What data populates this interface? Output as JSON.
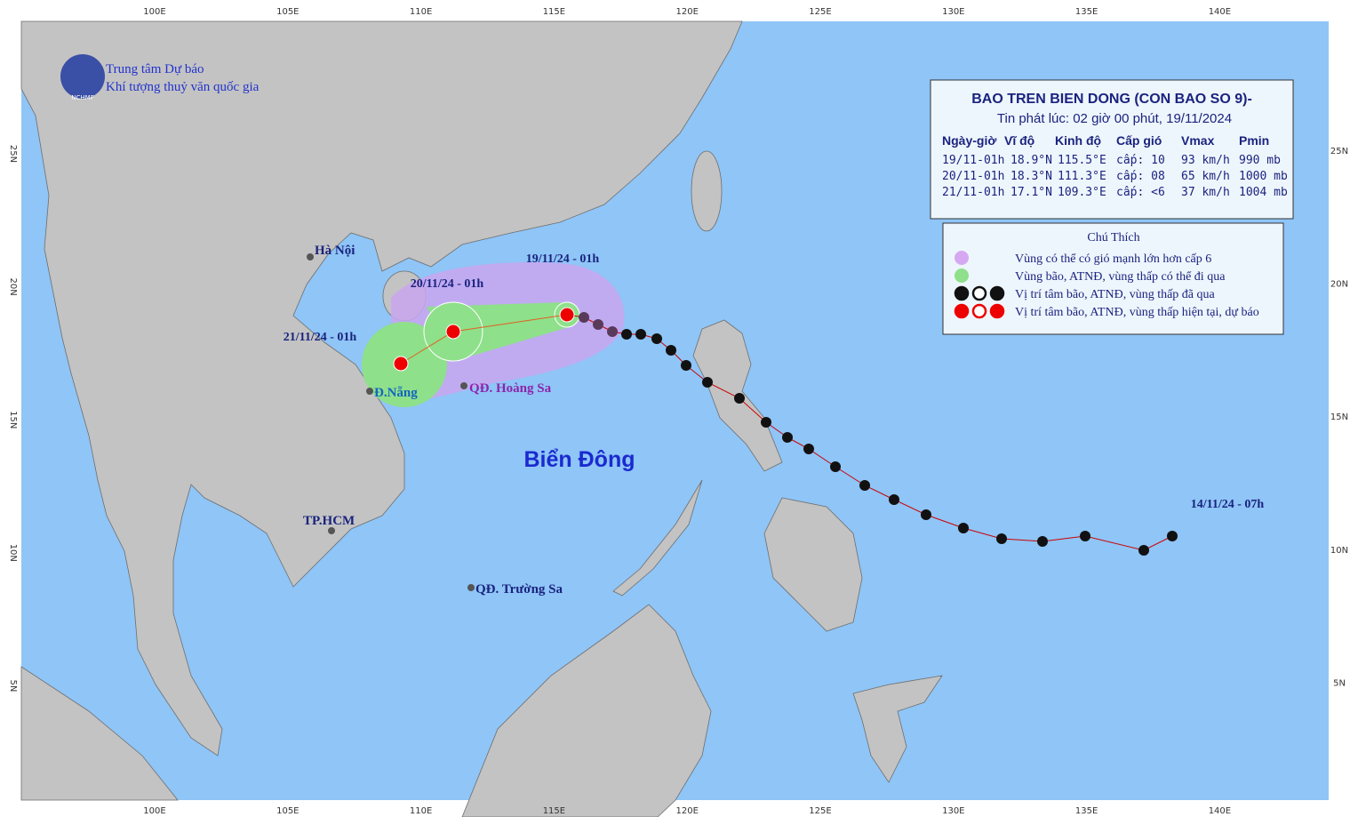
{
  "logo": {
    "org": "NCHMF",
    "line1": "Trung tâm Dự báo",
    "line2": "Khí tượng thuỷ văn quốc gia"
  },
  "map": {
    "lon_labels": [
      "100E",
      "105E",
      "110E",
      "115E",
      "120E",
      "125E",
      "130E",
      "135E",
      "140E"
    ],
    "lat_labels": [
      "25N",
      "20N",
      "15N",
      "10N",
      "5N"
    ],
    "places": [
      "Hà Nội",
      "Đ.Nẵng",
      "QĐ. Hoàng Sa",
      "TP.HCM",
      "QĐ. Trường Sa"
    ],
    "sea_label": "Biển Đông",
    "track_labels": [
      "19/11/24 - 01h",
      "20/11/24 - 01h",
      "21/11/24 - 01h",
      "14/11/24 - 07h"
    ]
  },
  "info": {
    "title": "BAO TREN BIEN DONG (CON BAO SO 9)-",
    "subtitle": "Tin phát lúc: 02 giờ 00 phút, 19/11/2024",
    "header": [
      "Ngày-giờ",
      "Vĩ độ",
      "Kinh độ",
      "Cấp gió",
      "Vmax",
      "Pmin"
    ],
    "rows": [
      [
        "19/11-01h",
        "18.9°N",
        "115.5°E",
        "cấp: 10",
        "93 km/h",
        "990 mb"
      ],
      [
        "20/11-01h",
        "18.3°N",
        "111.3°E",
        "cấp: 08",
        "65 km/h",
        "1000 mb"
      ],
      [
        "21/11-01h",
        "17.1°N",
        "109.3°E",
        "cấp: <6",
        "37 km/h",
        "1004 mb"
      ]
    ]
  },
  "legend": {
    "title": "Chú Thích",
    "items": [
      "Vùng có thể có gió mạnh lớn hơn cấp 6",
      "Vùng bão, ATNĐ, vùng thấp có thể đi qua",
      "Vị trí tâm bão, ATNĐ, vùng thấp đã qua",
      "Vị trí tâm bão, ATNĐ, vùng thấp hiện tại, dự báo"
    ]
  }
}
